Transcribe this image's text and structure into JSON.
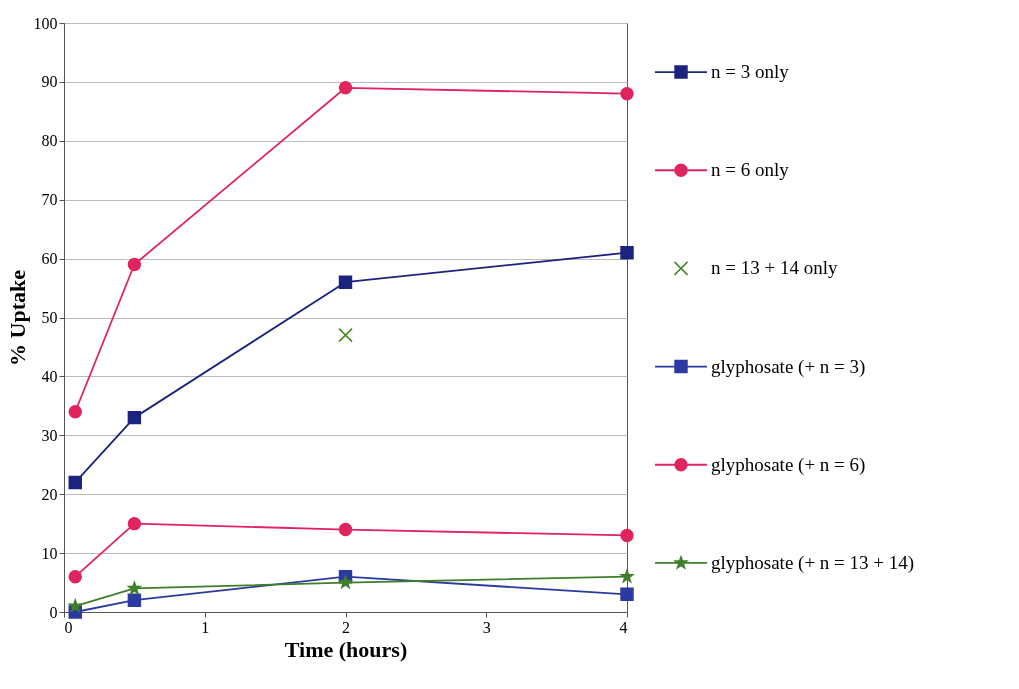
{
  "chart_data": {
    "type": "line",
    "xlabel": "Time (hours)",
    "ylabel": "% Uptake",
    "xlim": [
      0,
      4
    ],
    "xticks": [
      {
        "value": 0,
        "label": "0"
      },
      {
        "value": 1,
        "label": "1"
      },
      {
        "value": 2,
        "label": "2"
      },
      {
        "value": 3,
        "label": "3"
      },
      {
        "value": 4,
        "label": "4"
      }
    ],
    "ylim": [
      0,
      100
    ],
    "yticks": [
      0,
      10,
      20,
      30,
      40,
      50,
      60,
      70,
      80,
      90,
      100
    ],
    "grid": "y",
    "legend": "right",
    "x": [
      0.08,
      0.5,
      2,
      4
    ],
    "series": [
      {
        "name": "n = 3 only",
        "color": "#1a237e",
        "marker": "square",
        "values": [
          22,
          33,
          56,
          61
        ]
      },
      {
        "name": "n = 6 only",
        "color": "#e0245e",
        "marker": "circle",
        "values": [
          34,
          59,
          89,
          88
        ]
      },
      {
        "name": "n = 13 + 14 only",
        "type": "scatter",
        "color": "#4a8a2a",
        "marker": "cross",
        "x": [
          2
        ],
        "values": [
          47
        ]
      },
      {
        "name": "glyphosate (+ n = 3)",
        "color": "#2b3aa0",
        "marker": "square",
        "values": [
          0,
          2,
          6,
          3
        ]
      },
      {
        "name": "glyphosate (+ n = 6)",
        "color": "#e0245e",
        "marker": "circle",
        "values": [
          6,
          15,
          14,
          13
        ]
      },
      {
        "name": "glyphosate (+ n = 13 + 14)",
        "color": "#3f7f2a",
        "marker": "star",
        "values": [
          1,
          4,
          5,
          6
        ]
      }
    ]
  }
}
